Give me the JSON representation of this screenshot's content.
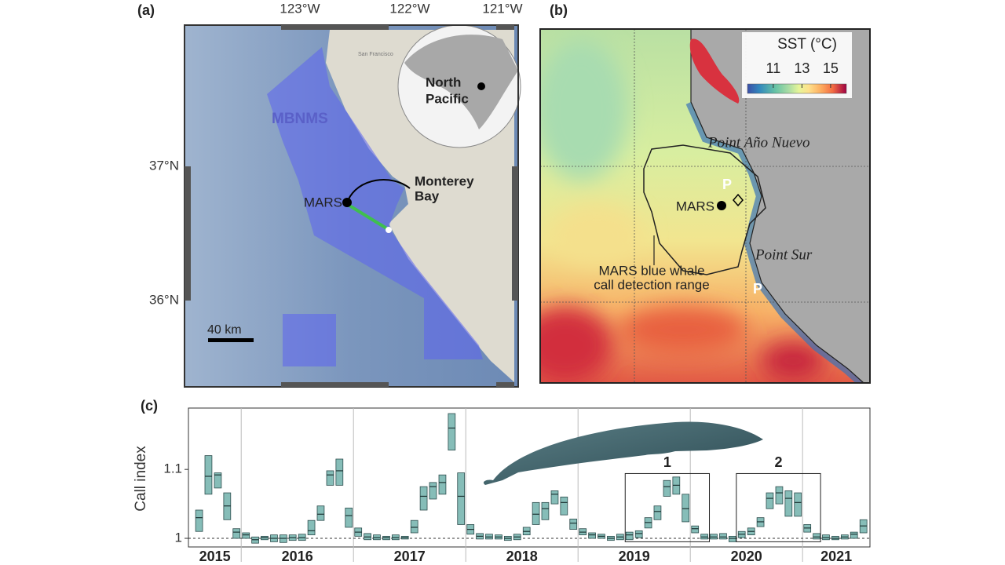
{
  "map_a": {
    "label": "(a)",
    "lon_labels": [
      "123°W",
      "122°W",
      "121°W"
    ],
    "lat_labels": [
      "37°N",
      "36°N"
    ],
    "mbnms": "MBNMS",
    "mars": "MARS",
    "bay": [
      "Monterey",
      "Bay"
    ],
    "inset": [
      "North",
      "Pacific"
    ],
    "sf": "San Francisco",
    "scale": "40 km"
  },
  "map_b": {
    "label": "(b)",
    "colorbar": {
      "title": "SST (°C)",
      "ticks": [
        11,
        13,
        15
      ],
      "lim": [
        9.2,
        16.1
      ]
    },
    "north": "Point Año Nuevo",
    "south": "Point Sur",
    "mars": "MARS",
    "range": [
      "MARS blue whale",
      "call detection range"
    ],
    "p_labels": [
      "P",
      "P"
    ]
  },
  "chart_data": {
    "type": "box",
    "label": "(c)",
    "ylabel": "Call index",
    "color": "#86bdb8",
    "xlim": [
      2015.53,
      2021.6
    ],
    "xticks": [
      2016,
      2017,
      2018,
      2019,
      2020,
      2021
    ],
    "year_labels": [
      "2015",
      "2016",
      "2017",
      "2018",
      "2019",
      "2020",
      "2021"
    ],
    "ylim": [
      0.9875,
      1.189
    ],
    "yticks": [
      1,
      1.1
    ],
    "reference_line": 1,
    "x": [
      2015.625,
      2015.708,
      2015.792,
      2015.875,
      2015.958,
      2016.042,
      2016.125,
      2016.208,
      2016.292,
      2016.375,
      2016.458,
      2016.542,
      2016.625,
      2016.708,
      2016.792,
      2016.875,
      2016.958,
      2017.042,
      2017.125,
      2017.208,
      2017.292,
      2017.375,
      2017.458,
      2017.542,
      2017.625,
      2017.708,
      2017.792,
      2017.875,
      2017.958,
      2018.042,
      2018.125,
      2018.208,
      2018.292,
      2018.375,
      2018.458,
      2018.542,
      2018.625,
      2018.708,
      2018.792,
      2018.875,
      2018.958,
      2019.042,
      2019.125,
      2019.208,
      2019.292,
      2019.375,
      2019.458,
      2019.542,
      2019.625,
      2019.708,
      2019.792,
      2019.875,
      2019.958,
      2020.042,
      2020.125,
      2020.208,
      2020.292,
      2020.375,
      2020.458,
      2020.542,
      2020.625,
      2020.708,
      2020.792,
      2020.875,
      2020.958,
      2021.042,
      2021.125,
      2021.208,
      2021.292,
      2021.375,
      2021.458,
      2021.542
    ],
    "low": [
      1.01,
      1.064,
      1.073,
      1.027,
      1.0,
      1.0,
      0.993,
      0.998,
      0.995,
      0.994,
      0.997,
      0.997,
      1.005,
      1.026,
      1.077,
      1.077,
      1.016,
      1.003,
      0.998,
      0.998,
      0.998,
      0.998,
      0.999,
      1.008,
      1.041,
      1.057,
      1.064,
      1.128,
      1.02,
      1.006,
      0.999,
      0.999,
      0.999,
      0.997,
      0.998,
      1.005,
      1.02,
      1.027,
      1.05,
      1.034,
      1.013,
      1.005,
      1.0,
      1.0,
      0.997,
      0.998,
      0.998,
      1.001,
      1.015,
      1.027,
      1.061,
      1.064,
      1.024,
      1.008,
      0.999,
      0.999,
      0.999,
      0.995,
      1.001,
      1.005,
      1.017,
      1.043,
      1.05,
      1.032,
      1.032,
      1.009,
      0.999,
      0.998,
      0.998,
      0.999,
      1.0,
      1.008
    ],
    "median": [
      1.03,
      1.09,
      1.092,
      1.047,
      1.009,
      1.005,
      0.998,
      1.001,
      1.0,
      1.0,
      1.001,
      1.001,
      1.011,
      1.035,
      1.092,
      1.098,
      1.033,
      1.009,
      1.002,
      1.001,
      1.001,
      1.001,
      1.001,
      1.016,
      1.061,
      1.075,
      1.081,
      1.16,
      1.061,
      1.013,
      1.003,
      1.002,
      1.002,
      1.0,
      1.002,
      1.01,
      1.035,
      1.043,
      1.064,
      1.052,
      1.022,
      1.009,
      1.005,
      1.003,
      1.0,
      1.002,
      1.005,
      1.007,
      1.023,
      1.039,
      1.075,
      1.077,
      1.043,
      1.014,
      1.002,
      1.002,
      1.002,
      1.0,
      1.006,
      1.01,
      1.024,
      1.058,
      1.066,
      1.058,
      1.052,
      1.015,
      1.002,
      1.001,
      1.0,
      1.002,
      1.006,
      1.018
    ],
    "high": [
      1.041,
      1.12,
      1.095,
      1.066,
      1.014,
      1.008,
      1.002,
      1.003,
      1.005,
      1.005,
      1.005,
      1.006,
      1.026,
      1.047,
      1.098,
      1.115,
      1.044,
      1.015,
      1.007,
      1.005,
      1.003,
      1.005,
      1.003,
      1.026,
      1.075,
      1.081,
      1.092,
      1.181,
      1.095,
      1.02,
      1.007,
      1.006,
      1.005,
      1.003,
      1.006,
      1.016,
      1.052,
      1.052,
      1.069,
      1.06,
      1.028,
      1.014,
      1.008,
      1.006,
      1.003,
      1.006,
      1.009,
      1.011,
      1.03,
      1.047,
      1.084,
      1.089,
      1.064,
      1.018,
      1.006,
      1.006,
      1.007,
      1.003,
      1.01,
      1.015,
      1.03,
      1.066,
      1.075,
      1.069,
      1.066,
      1.02,
      1.007,
      1.005,
      1.003,
      1.005,
      1.009,
      1.027
    ],
    "highlights": [
      {
        "label": "1",
        "x": [
          2019.42,
          2020.17
        ],
        "y": [
          0.995,
          1.094
        ]
      },
      {
        "label": "2",
        "x": [
          2020.41,
          2021.16
        ],
        "y": [
          0.995,
          1.094
        ]
      }
    ]
  }
}
